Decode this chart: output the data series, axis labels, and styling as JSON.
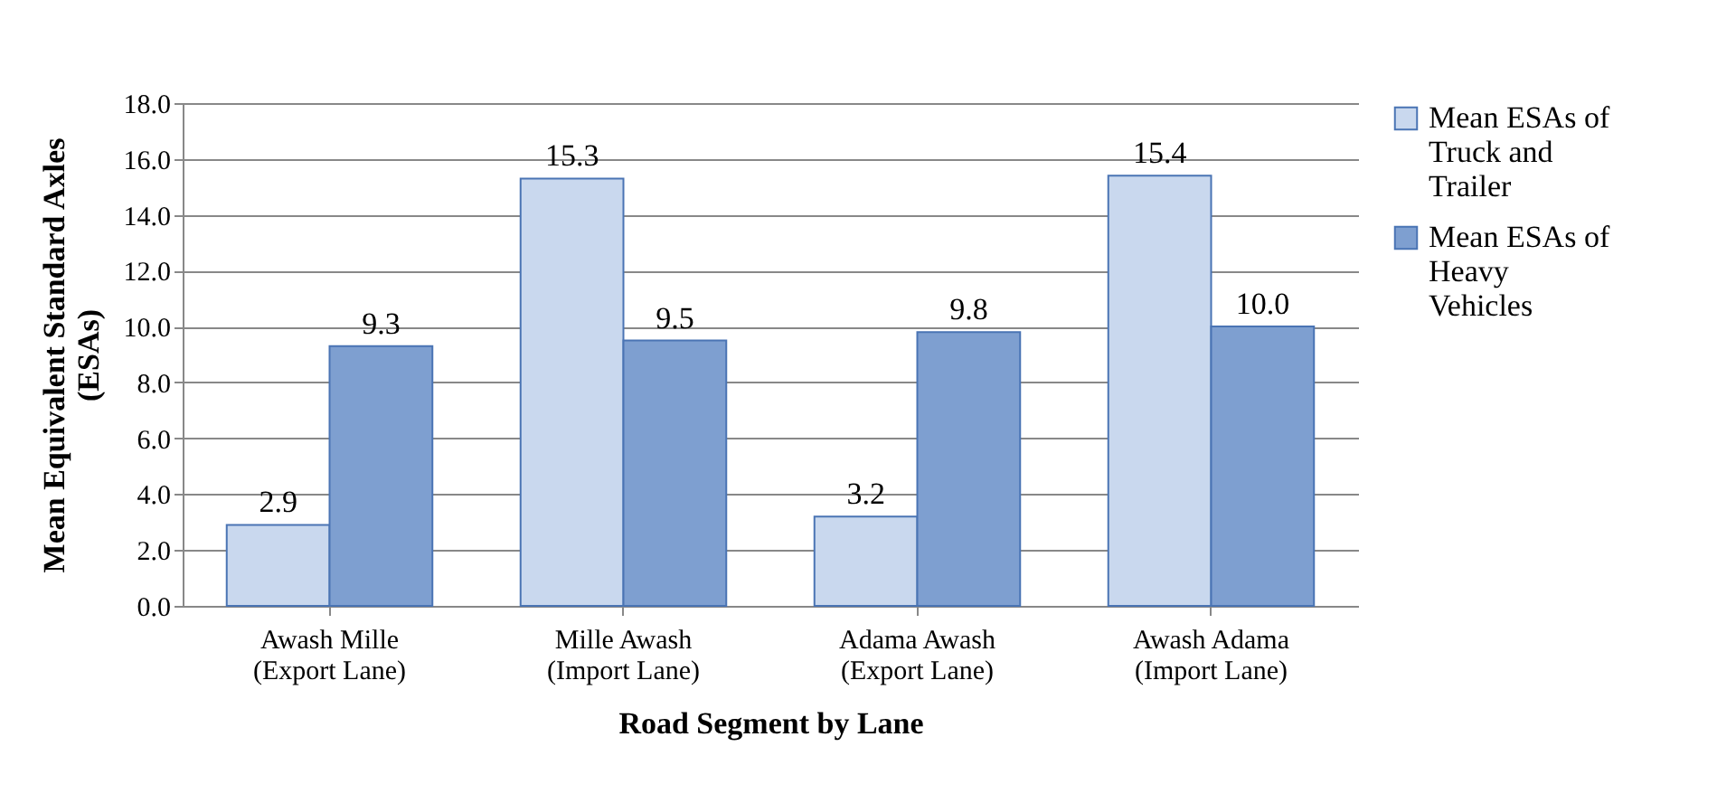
{
  "chart_data": {
    "type": "bar",
    "xlabel": "Road Segment by Lane",
    "ylabel": "Mean Equivalent Standard Axles (ESAs)",
    "categories": [
      "Awash Mille (Export Lane)",
      "Mille Awash (Import Lane)",
      "Adama Awash (Export  Lane)",
      "Awash Adama (Import Lane)"
    ],
    "series": [
      {
        "name": "Mean ESAs of Truck and Trailer",
        "color": "#c9d8ee",
        "values": [
          2.9,
          15.3,
          3.2,
          15.4
        ],
        "value_labels": [
          "2.9",
          "15.3",
          "3.2",
          "15.4"
        ]
      },
      {
        "name": "Mean ESAs of Heavy Vehicles",
        "color": "#7e9fd0",
        "values": [
          9.3,
          9.5,
          9.8,
          10.0
        ],
        "value_labels": [
          "9.3",
          "9.5",
          "9.8",
          "10.0"
        ]
      }
    ],
    "ylim": [
      0,
      18
    ],
    "yticks": [
      {
        "value": 0,
        "label": "0.0"
      },
      {
        "value": 2,
        "label": "2.0"
      },
      {
        "value": 4,
        "label": "4.0"
      },
      {
        "value": 6,
        "label": "6.0"
      },
      {
        "value": 8,
        "label": "8.0"
      },
      {
        "value": 10,
        "label": "10.0"
      },
      {
        "value": 12,
        "label": "12.0"
      },
      {
        "value": 14,
        "label": "14.0"
      },
      {
        "value": 16,
        "label": "16.0"
      },
      {
        "value": 18,
        "label": "18.0"
      }
    ],
    "grid": "y",
    "legend": "right"
  }
}
